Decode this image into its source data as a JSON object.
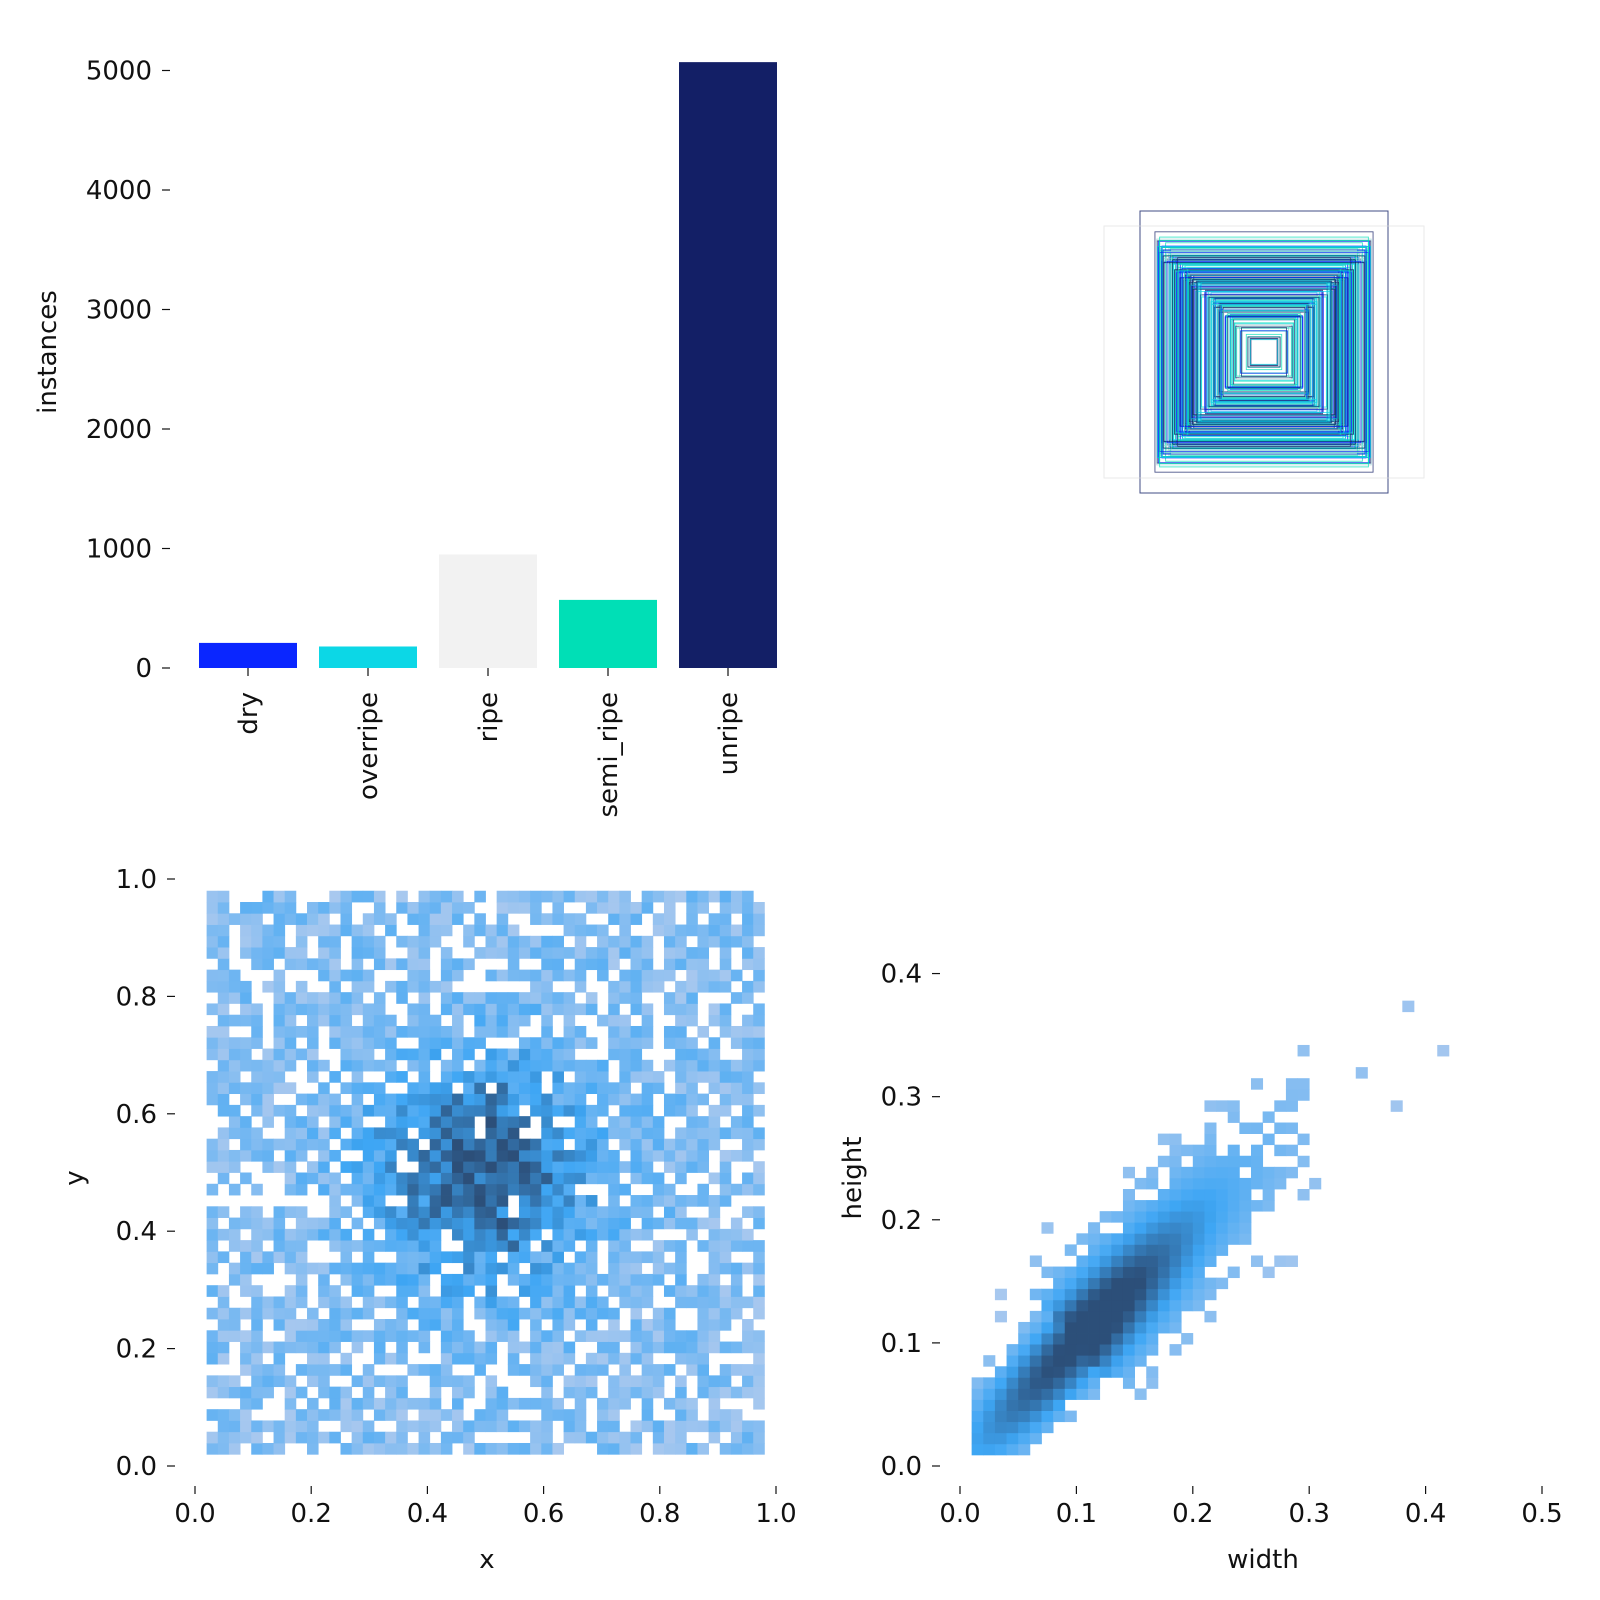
{
  "chart_data": [
    {
      "panel": "class-instances",
      "type": "bar",
      "title": "",
      "xlabel": "",
      "ylabel": "instances",
      "categories": [
        "dry",
        "overripe",
        "ripe",
        "semi_ripe",
        "unripe"
      ],
      "values": [
        210,
        180,
        950,
        570,
        5070
      ],
      "colors": [
        "#0a26ff",
        "#0cd7e6",
        "#f2f2f2",
        "#00dfb6",
        "#131f66"
      ],
      "ylim": [
        0,
        5200
      ],
      "yticks": [
        "0",
        "1000",
        "2000",
        "3000",
        "4000",
        "5000"
      ]
    },
    {
      "panel": "box-overlay",
      "type": "scatter",
      "title": "",
      "description_free": true,
      "axes_visible": false
    },
    {
      "panel": "xy-histogram",
      "type": "heatmap",
      "title": "",
      "xlabel": "x",
      "ylabel": "y",
      "xlim": [
        0.0,
        1.0
      ],
      "ylim": [
        0.0,
        1.0
      ],
      "xticks": [
        "0.0",
        "0.2",
        "0.4",
        "0.6",
        "0.8",
        "1.0"
      ],
      "yticks": [
        "0.0",
        "0.2",
        "0.4",
        "0.6",
        "0.8",
        "1.0"
      ],
      "data_extent": [
        0.02,
        0.98
      ],
      "peak": [
        0.5,
        0.5
      ],
      "bins": 50
    },
    {
      "panel": "width-height-histogram",
      "type": "heatmap",
      "title": "",
      "xlabel": "width",
      "ylabel": "height",
      "xlim": [
        0.0,
        0.5
      ],
      "ylim": [
        0.0,
        0.45
      ],
      "xticks": [
        "0.0",
        "0.1",
        "0.2",
        "0.3",
        "0.4",
        "0.5"
      ],
      "yticks": [
        "0.0",
        "0.1",
        "0.2",
        "0.3",
        "0.4"
      ],
      "peak": [
        0.1,
        0.1
      ],
      "correlation": "positive",
      "bins": 50
    }
  ],
  "colors": {
    "hist_light": "#a8c8ef",
    "hist_mid": "#3ea6f4",
    "hist_dark": "#2c4f79"
  }
}
